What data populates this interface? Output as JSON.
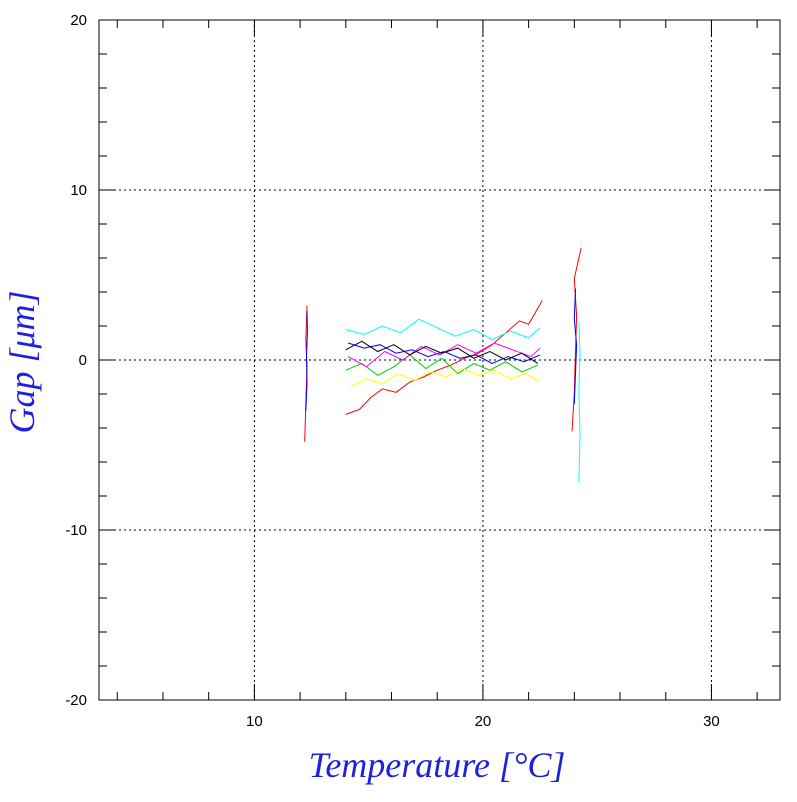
{
  "chart_data": {
    "type": "line",
    "title": "",
    "xlabel": "Temperature [°C]",
    "ylabel": "Gap [μm]",
    "xlim": [
      3.2,
      33.0
    ],
    "ylim": [
      -20,
      20
    ],
    "x_ticks": [
      10,
      20,
      30
    ],
    "y_ticks": [
      -20,
      -10,
      0,
      10,
      20
    ],
    "x_tick_labels": [
      "10",
      "20",
      "30"
    ],
    "y_tick_labels": [
      "-20",
      "-10",
      "0",
      "10",
      "20"
    ],
    "grid": true,
    "legend": "none",
    "notes": "Many overlapping traces; data clusters at about 12.3 °C, 14–22.5 °C and 24 °C with gaps mostly within ±3 μm",
    "series": [
      {
        "color": "#ff0000",
        "points": [
          [
            14.0,
            -3.2
          ],
          [
            14.6,
            -2.9
          ],
          [
            15.1,
            -2.2
          ],
          [
            15.6,
            -1.7
          ],
          [
            16.2,
            -1.9
          ],
          [
            16.8,
            -1.3
          ],
          [
            17.4,
            -1.0
          ],
          [
            18.0,
            -0.6
          ],
          [
            18.6,
            -0.3
          ],
          [
            19.2,
            0.1
          ],
          [
            19.8,
            0.4
          ],
          [
            20.4,
            0.9
          ],
          [
            21.0,
            1.6
          ],
          [
            21.6,
            2.3
          ],
          [
            22.0,
            2.1
          ],
          [
            22.6,
            3.5
          ]
        ]
      },
      {
        "color": "#0000ff",
        "points": [
          [
            14.1,
            1.0
          ],
          [
            14.8,
            0.7
          ],
          [
            15.5,
            0.9
          ],
          [
            16.2,
            0.4
          ],
          [
            16.9,
            0.6
          ],
          [
            17.6,
            0.2
          ],
          [
            18.3,
            0.5
          ],
          [
            19.0,
            0.1
          ],
          [
            19.7,
            0.3
          ],
          [
            20.4,
            -0.2
          ],
          [
            21.1,
            0.2
          ],
          [
            21.8,
            -0.1
          ],
          [
            22.5,
            0.3
          ]
        ]
      },
      {
        "color": "#00cc00",
        "points": [
          [
            14.0,
            -0.6
          ],
          [
            14.7,
            -0.2
          ],
          [
            15.4,
            -0.9
          ],
          [
            16.1,
            -0.4
          ],
          [
            16.8,
            0.3
          ],
          [
            17.5,
            -0.5
          ],
          [
            18.2,
            0.1
          ],
          [
            18.9,
            -0.8
          ],
          [
            19.6,
            -0.2
          ],
          [
            20.3,
            -0.6
          ],
          [
            21.0,
            -0.1
          ],
          [
            21.7,
            -0.7
          ],
          [
            22.4,
            -0.3
          ]
        ]
      },
      {
        "color": "#ffff00",
        "points": [
          [
            14.2,
            -1.6
          ],
          [
            14.9,
            -1.1
          ],
          [
            15.6,
            -1.4
          ],
          [
            16.3,
            -0.8
          ],
          [
            17.0,
            -1.2
          ],
          [
            17.7,
            -0.7
          ],
          [
            18.4,
            -1.0
          ],
          [
            19.1,
            -0.5
          ],
          [
            19.8,
            -0.9
          ],
          [
            20.5,
            -0.6
          ],
          [
            21.2,
            -1.1
          ],
          [
            21.9,
            -0.8
          ],
          [
            22.5,
            -1.3
          ]
        ]
      },
      {
        "color": "#00ffff",
        "points": [
          [
            14.0,
            1.8
          ],
          [
            14.8,
            1.5
          ],
          [
            15.6,
            2.0
          ],
          [
            16.4,
            1.6
          ],
          [
            17.2,
            2.4
          ],
          [
            18.0,
            1.9
          ],
          [
            18.8,
            1.4
          ],
          [
            19.6,
            1.8
          ],
          [
            20.4,
            1.2
          ],
          [
            21.2,
            1.7
          ],
          [
            22.0,
            1.3
          ],
          [
            22.5,
            1.9
          ]
        ]
      },
      {
        "color": "#ff00ff",
        "points": [
          [
            14.1,
            0.2
          ],
          [
            14.9,
            -0.4
          ],
          [
            15.7,
            0.5
          ],
          [
            16.5,
            0.0
          ],
          [
            17.3,
            0.8
          ],
          [
            18.1,
            0.3
          ],
          [
            18.9,
            0.9
          ],
          [
            19.7,
            0.4
          ],
          [
            20.5,
            1.0
          ],
          [
            21.3,
            0.6
          ],
          [
            22.1,
            0.2
          ],
          [
            22.5,
            0.7
          ]
        ]
      },
      {
        "color": "#000000",
        "points": [
          [
            14.0,
            0.6
          ],
          [
            14.7,
            1.1
          ],
          [
            15.4,
            0.5
          ],
          [
            16.1,
            0.9
          ],
          [
            16.8,
            0.3
          ],
          [
            17.5,
            0.8
          ],
          [
            18.2,
            0.4
          ],
          [
            18.9,
            0.7
          ],
          [
            19.6,
            0.1
          ],
          [
            20.3,
            0.5
          ],
          [
            21.0,
            0.0
          ],
          [
            21.7,
            0.4
          ],
          [
            22.4,
            -0.2
          ]
        ]
      },
      {
        "color": "#ff0000",
        "points": [
          [
            12.2,
            -4.8
          ],
          [
            12.25,
            -2.6
          ],
          [
            12.3,
            -0.4
          ],
          [
            12.25,
            1.2
          ],
          [
            12.3,
            3.2
          ]
        ]
      },
      {
        "color": "#0000ff",
        "points": [
          [
            12.25,
            -3.0
          ],
          [
            12.3,
            -1.4
          ],
          [
            12.28,
            0.2
          ],
          [
            12.32,
            1.6
          ],
          [
            12.3,
            2.9
          ]
        ]
      },
      {
        "color": "#ff0000",
        "points": [
          [
            23.9,
            -4.2
          ],
          [
            24.0,
            -2.0
          ],
          [
            24.05,
            0.5
          ],
          [
            24.1,
            2.6
          ],
          [
            24.0,
            4.8
          ],
          [
            24.3,
            6.6
          ]
        ]
      },
      {
        "color": "#00ffff",
        "points": [
          [
            24.2,
            -7.2
          ],
          [
            24.25,
            -4.4
          ],
          [
            24.2,
            -1.8
          ],
          [
            24.25,
            0.4
          ],
          [
            24.2,
            2.2
          ]
        ]
      },
      {
        "color": "#0000ff",
        "points": [
          [
            24.0,
            -2.6
          ],
          [
            24.05,
            -0.8
          ],
          [
            24.1,
            0.9
          ],
          [
            24.0,
            2.4
          ],
          [
            24.05,
            4.2
          ]
        ]
      }
    ]
  }
}
